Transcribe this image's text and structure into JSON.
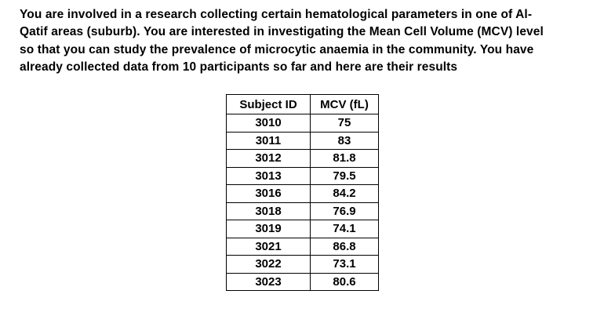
{
  "paragraph": {
    "full_text": "You are involved in a research collecting certain hematological parameters in one of Al-Qatif areas (suburb). You are interested in investigating the Mean Cell Volume (MCV) level so that you can study the prevalence of microcytic anaemia in the community. You have already collected data from 10 participants so far and here are their results",
    "lines": [
      "You are involved in a research collecting certain hematological parameters in one of Al-",
      "Qatif areas (suburb). You are interested in investigating the Mean Cell Volume (MCV) level",
      "so that you can study the prevalence of microcytic anaemia in the community. You have",
      "already collected data from 10 participants so far and here are their results"
    ]
  },
  "table": {
    "headers": [
      "Subject ID",
      "MCV (fL)"
    ],
    "rows": [
      [
        "3010",
        "75"
      ],
      [
        "3011",
        "83"
      ],
      [
        "3012",
        "81.8"
      ],
      [
        "3013",
        "79.5"
      ],
      [
        "3016",
        "84.2"
      ],
      [
        "3018",
        "76.9"
      ],
      [
        "3019",
        "74.1"
      ],
      [
        "3021",
        "86.8"
      ],
      [
        "3022",
        "73.1"
      ],
      [
        "3023",
        "80.6"
      ]
    ]
  },
  "colors": {
    "text": "#000000",
    "background": "#ffffff",
    "table_border": "#000000"
  }
}
